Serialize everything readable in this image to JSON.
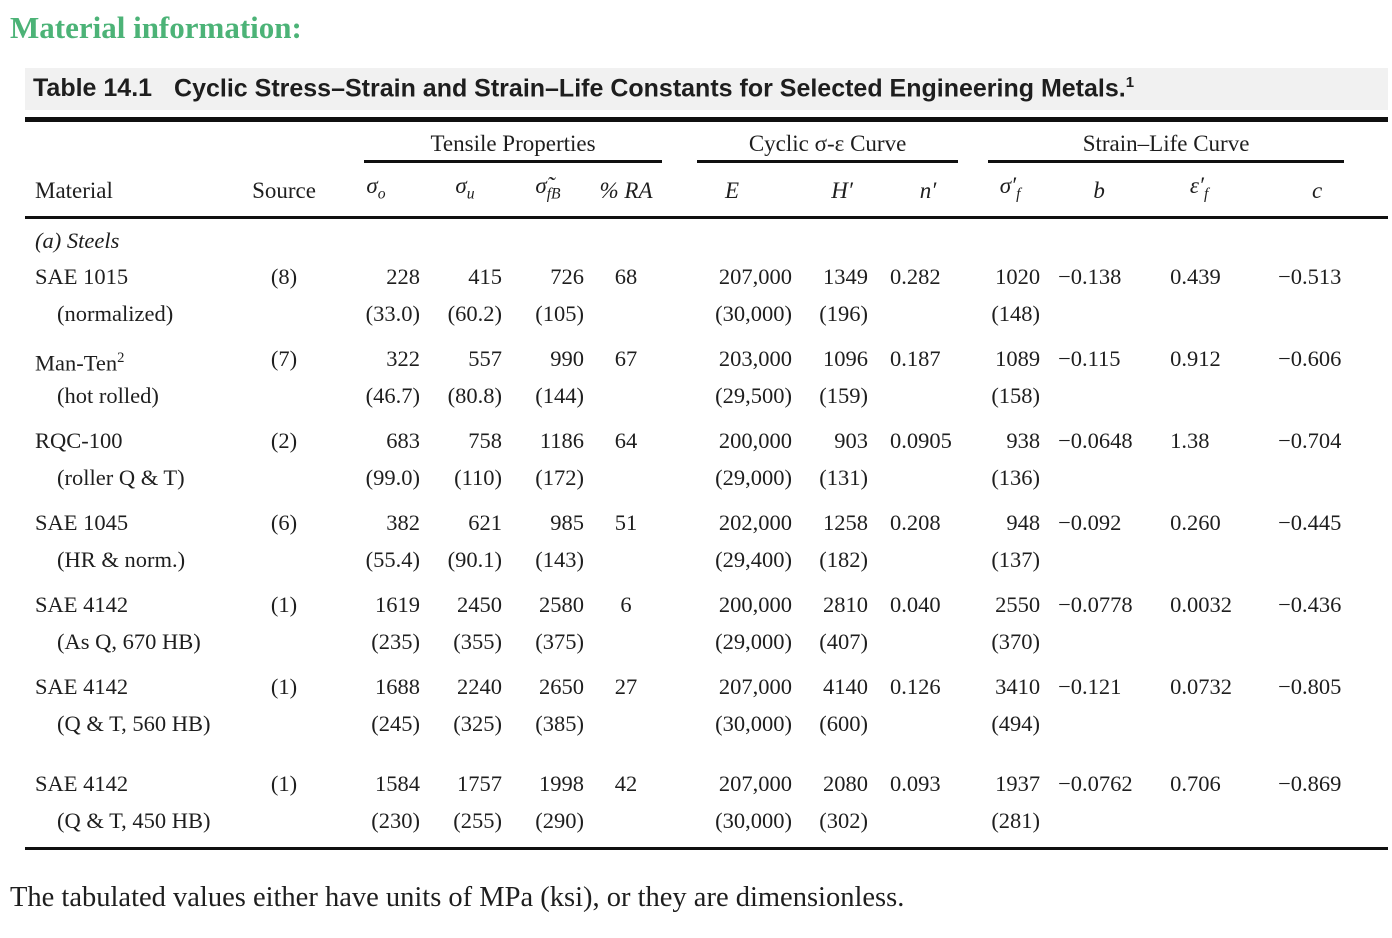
{
  "page": {
    "heading": "Material information:",
    "footnote": "The tabulated values either have units of MPa (ksi), or they are dimensionless.",
    "accent_green": "#4cb377"
  },
  "table": {
    "label": "Table 14.1",
    "title": "Cyclic Stress–Strain and Strain–Life Constants for Selected Engineering Metals.",
    "title_footnote_mark": "1",
    "groups": [
      {
        "label": "Tensile Properties"
      },
      {
        "label": "Cyclic σ-ε Curve"
      },
      {
        "label": "Strain–Life Curve"
      }
    ],
    "columns": {
      "material": "Material",
      "source": "Source",
      "sigma_o": {
        "base": "σ",
        "sub": "o"
      },
      "sigma_u": {
        "base": "σ",
        "sub": "u"
      },
      "sigma_fB": {
        "base": "σ̃",
        "sub": "fB"
      },
      "pct_RA": "% RA",
      "E": "E",
      "H_prime": "H′",
      "n_prime": "n′",
      "sigma_f_prime": {
        "base": "σ′",
        "sub": "f"
      },
      "b": "b",
      "ef_prime": {
        "base": "ε′",
        "sub": "f"
      },
      "c": "c"
    },
    "section_label": "(a) Steels",
    "rows": [
      {
        "material": "SAE 1015",
        "material_sup": "",
        "condition": "(normalized)",
        "source": "(8)",
        "sigma_o": "228",
        "sigma_o_ksi": "(33.0)",
        "sigma_u": "415",
        "sigma_u_ksi": "(60.2)",
        "sigma_fB": "726",
        "sigma_fB_ksi": "(105)",
        "pct_RA": "68",
        "E": "207,000",
        "E_ksi": "(30,000)",
        "H_prime": "1349",
        "H_prime_ksi": "(196)",
        "n_prime": "0.282",
        "sigma_f_prime": "1020",
        "sigma_f_prime_ksi": "(148)",
        "b": "−0.138",
        "ef_prime": "0.439",
        "c": "−0.513"
      },
      {
        "material": "Man-Ten",
        "material_sup": "2",
        "condition": "(hot rolled)",
        "source": "(7)",
        "sigma_o": "322",
        "sigma_o_ksi": "(46.7)",
        "sigma_u": "557",
        "sigma_u_ksi": "(80.8)",
        "sigma_fB": "990",
        "sigma_fB_ksi": "(144)",
        "pct_RA": "67",
        "E": "203,000",
        "E_ksi": "(29,500)",
        "H_prime": "1096",
        "H_prime_ksi": "(159)",
        "n_prime": "0.187",
        "sigma_f_prime": "1089",
        "sigma_f_prime_ksi": "(158)",
        "b": "−0.115",
        "ef_prime": "0.912",
        "c": "−0.606"
      },
      {
        "material": "RQC-100",
        "material_sup": "",
        "condition": "(roller Q & T)",
        "source": "(2)",
        "sigma_o": "683",
        "sigma_o_ksi": "(99.0)",
        "sigma_u": "758",
        "sigma_u_ksi": "(110)",
        "sigma_fB": "1186",
        "sigma_fB_ksi": "(172)",
        "pct_RA": "64",
        "E": "200,000",
        "E_ksi": "(29,000)",
        "H_prime": "903",
        "H_prime_ksi": "(131)",
        "n_prime": "0.0905",
        "sigma_f_prime": "938",
        "sigma_f_prime_ksi": "(136)",
        "b": "−0.0648",
        "ef_prime": "1.38",
        "c": "−0.704"
      },
      {
        "material": "SAE 1045",
        "material_sup": "",
        "condition": "(HR & norm.)",
        "source": "(6)",
        "sigma_o": "382",
        "sigma_o_ksi": "(55.4)",
        "sigma_u": "621",
        "sigma_u_ksi": "(90.1)",
        "sigma_fB": "985",
        "sigma_fB_ksi": "(143)",
        "pct_RA": "51",
        "E": "202,000",
        "E_ksi": "(29,400)",
        "H_prime": "1258",
        "H_prime_ksi": "(182)",
        "n_prime": "0.208",
        "sigma_f_prime": "948",
        "sigma_f_prime_ksi": "(137)",
        "b": "−0.092",
        "ef_prime": "0.260",
        "c": "−0.445"
      },
      {
        "material": "SAE 4142",
        "material_sup": "",
        "condition": "(As Q, 670 HB)",
        "source": "(1)",
        "sigma_o": "1619",
        "sigma_o_ksi": "(235)",
        "sigma_u": "2450",
        "sigma_u_ksi": "(355)",
        "sigma_fB": "2580",
        "sigma_fB_ksi": "(375)",
        "pct_RA": "6",
        "E": "200,000",
        "E_ksi": "(29,000)",
        "H_prime": "2810",
        "H_prime_ksi": "(407)",
        "n_prime": "0.040",
        "sigma_f_prime": "2550",
        "sigma_f_prime_ksi": "(370)",
        "b": "−0.0778",
        "ef_prime": "0.0032",
        "c": "−0.436"
      },
      {
        "material": "SAE 4142",
        "material_sup": "",
        "condition": "(Q & T, 560 HB)",
        "source": "(1)",
        "sigma_o": "1688",
        "sigma_o_ksi": "(245)",
        "sigma_u": "2240",
        "sigma_u_ksi": "(325)",
        "sigma_fB": "2650",
        "sigma_fB_ksi": "(385)",
        "pct_RA": "27",
        "E": "207,000",
        "E_ksi": "(30,000)",
        "H_prime": "4140",
        "H_prime_ksi": "(600)",
        "n_prime": "0.126",
        "sigma_f_prime": "3410",
        "sigma_f_prime_ksi": "(494)",
        "b": "−0.121",
        "ef_prime": "0.0732",
        "c": "−0.805"
      },
      {
        "material": "SAE 4142",
        "material_sup": "",
        "condition": "(Q & T, 450 HB)",
        "source": "(1)",
        "gap_before": true,
        "sigma_o": "1584",
        "sigma_o_ksi": "(230)",
        "sigma_u": "1757",
        "sigma_u_ksi": "(255)",
        "sigma_fB": "1998",
        "sigma_fB_ksi": "(290)",
        "pct_RA": "42",
        "E": "207,000",
        "E_ksi": "(30,000)",
        "H_prime": "2080",
        "H_prime_ksi": "(302)",
        "n_prime": "0.093",
        "sigma_f_prime": "1937",
        "sigma_f_prime_ksi": "(281)",
        "b": "−0.0762",
        "ef_prime": "0.706",
        "c": "−0.869"
      }
    ]
  }
}
